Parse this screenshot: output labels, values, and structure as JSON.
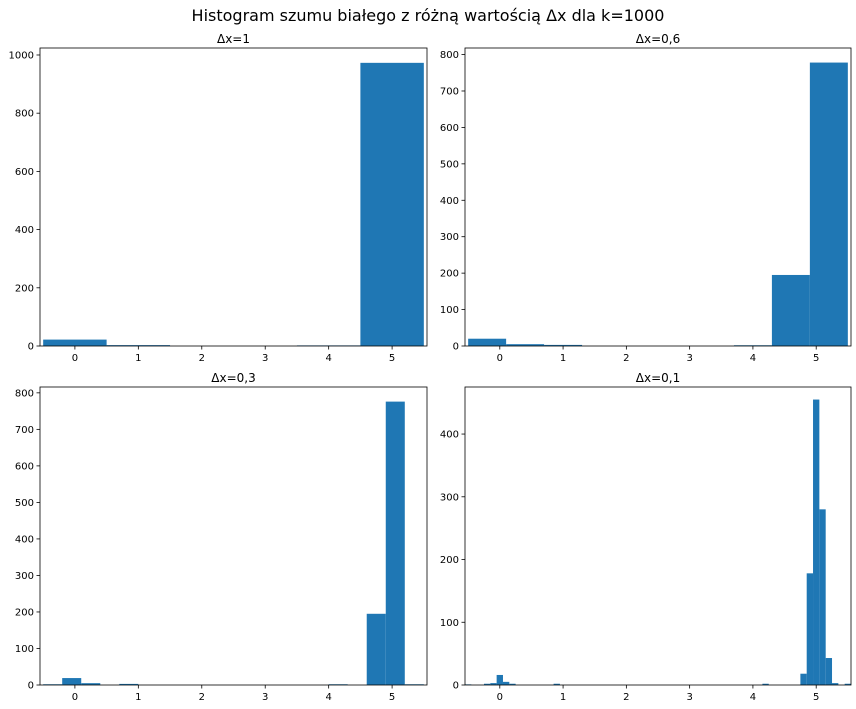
{
  "figure": {
    "title": "Histogram szumu białego z różną wartością Δx dla k=1000"
  },
  "colors": {
    "bar": "#1f77b4",
    "background": "#ffffff",
    "axes": "#000000"
  },
  "chart_data": [
    {
      "type": "bar",
      "title": "Δx=1",
      "xlabel": "",
      "ylabel": "",
      "xlim": [
        -0.55,
        5.55
      ],
      "ylim": [
        0,
        1024
      ],
      "xticks": [
        0,
        1,
        2,
        3,
        4,
        5
      ],
      "yticks": [
        0,
        200,
        400,
        600,
        800,
        1000
      ],
      "grid": false,
      "bin_width": 1.0,
      "bars": [
        {
          "x": 0,
          "value": 22
        },
        {
          "x": 1,
          "value": 3
        },
        {
          "x": 2,
          "value": 0
        },
        {
          "x": 3,
          "value": 0
        },
        {
          "x": 4,
          "value": 2
        },
        {
          "x": 5,
          "value": 973
        }
      ]
    },
    {
      "type": "bar",
      "title": "Δx=0,6",
      "xlabel": "",
      "ylabel": "",
      "xlim": [
        -0.55,
        5.55
      ],
      "ylim": [
        0,
        818
      ],
      "xticks": [
        0,
        1,
        2,
        3,
        4,
        5
      ],
      "yticks": [
        0,
        100,
        200,
        300,
        400,
        500,
        600,
        700,
        800
      ],
      "grid": false,
      "bin_width": 0.6,
      "bars": [
        {
          "x": -0.2,
          "value": 20
        },
        {
          "x": 0.4,
          "value": 5
        },
        {
          "x": 1.0,
          "value": 3
        },
        {
          "x": 1.6,
          "value": 0
        },
        {
          "x": 2.2,
          "value": 0
        },
        {
          "x": 2.8,
          "value": 0
        },
        {
          "x": 3.4,
          "value": 0
        },
        {
          "x": 4.0,
          "value": 2
        },
        {
          "x": 4.6,
          "value": 195
        },
        {
          "x": 5.2,
          "value": 778
        }
      ]
    },
    {
      "type": "bar",
      "title": "Δx=0,3",
      "xlabel": "",
      "ylabel": "",
      "xlim": [
        -0.55,
        5.55
      ],
      "ylim": [
        0,
        816
      ],
      "xticks": [
        0,
        1,
        2,
        3,
        4,
        5
      ],
      "yticks": [
        0,
        100,
        200,
        300,
        400,
        500,
        600,
        700,
        800
      ],
      "grid": false,
      "bin_width": 0.3,
      "bars": [
        {
          "x": -0.35,
          "value": 2
        },
        {
          "x": -0.05,
          "value": 19
        },
        {
          "x": 0.25,
          "value": 5
        },
        {
          "x": 0.85,
          "value": 3
        },
        {
          "x": 4.15,
          "value": 2
        },
        {
          "x": 4.75,
          "value": 195
        },
        {
          "x": 5.05,
          "value": 776
        },
        {
          "x": 5.35,
          "value": 2
        }
      ]
    },
    {
      "type": "bar",
      "title": "Δx=0,1",
      "xlabel": "",
      "ylabel": "",
      "xlim": [
        -0.55,
        5.55
      ],
      "ylim": [
        0,
        475
      ],
      "xticks": [
        0,
        1,
        2,
        3,
        4,
        5
      ],
      "yticks": [
        0,
        100,
        200,
        300,
        400
      ],
      "grid": false,
      "bin_width": 0.1,
      "bars": [
        {
          "x": -0.5,
          "value": 1
        },
        {
          "x": -0.2,
          "value": 2
        },
        {
          "x": -0.1,
          "value": 3
        },
        {
          "x": 0.0,
          "value": 16
        },
        {
          "x": 0.1,
          "value": 5
        },
        {
          "x": 0.2,
          "value": 2
        },
        {
          "x": 0.9,
          "value": 2
        },
        {
          "x": 4.2,
          "value": 2
        },
        {
          "x": 4.8,
          "value": 18
        },
        {
          "x": 4.9,
          "value": 178
        },
        {
          "x": 5.0,
          "value": 455
        },
        {
          "x": 5.1,
          "value": 280
        },
        {
          "x": 5.2,
          "value": 43
        },
        {
          "x": 5.3,
          "value": 3
        },
        {
          "x": 5.5,
          "value": 2
        }
      ]
    }
  ]
}
